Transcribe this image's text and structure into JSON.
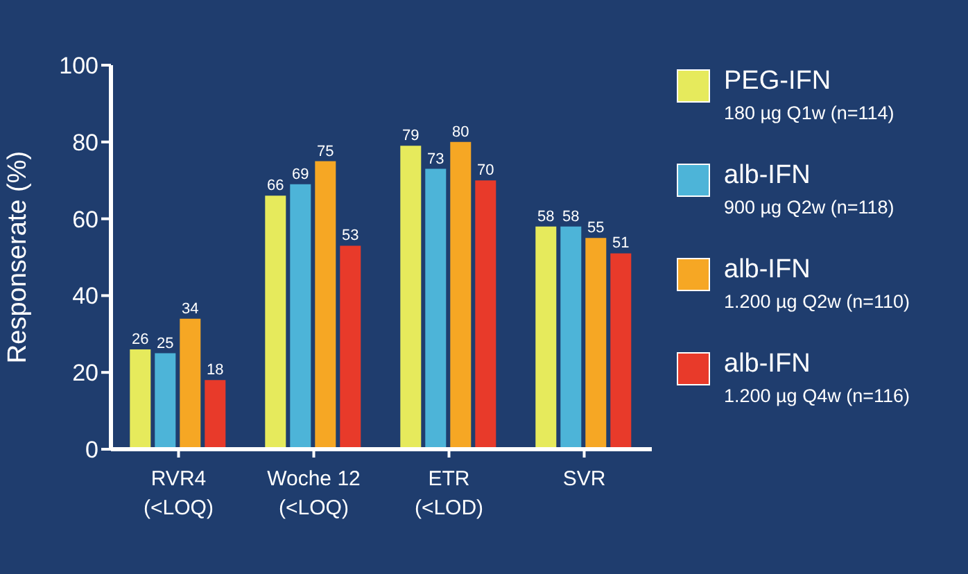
{
  "chart_data": {
    "type": "bar",
    "ylabel": "Responserate (%)",
    "categories": [
      "RVR4\n(<LOQ)",
      "Woche 12\n(<LOQ)",
      "ETR\n(<LOD)",
      "SVR"
    ],
    "series": [
      {
        "name": "PEG-IFN\n180 µg Q1w (n=114)",
        "color": "#e6ea5c",
        "values": [
          26,
          66,
          79,
          58
        ]
      },
      {
        "name": "alb-IFN\n900 µg Q2w (n=118)",
        "color": "#4db4d8",
        "values": [
          25,
          69,
          73,
          58
        ]
      },
      {
        "name": "alb-IFN\n1.200 µg Q2w (n=110)",
        "color": "#f6a724",
        "values": [
          34,
          75,
          80,
          55
        ]
      },
      {
        "name": "alb-IFN\n1.200 µg Q4w (n=116)",
        "color": "#e83a2a",
        "values": [
          18,
          53,
          70,
          51
        ]
      }
    ],
    "ylim": [
      0,
      100
    ],
    "yticks": [
      0,
      20,
      40,
      60,
      80,
      100
    ],
    "grid": false,
    "legend": "right",
    "data_labels": true
  }
}
